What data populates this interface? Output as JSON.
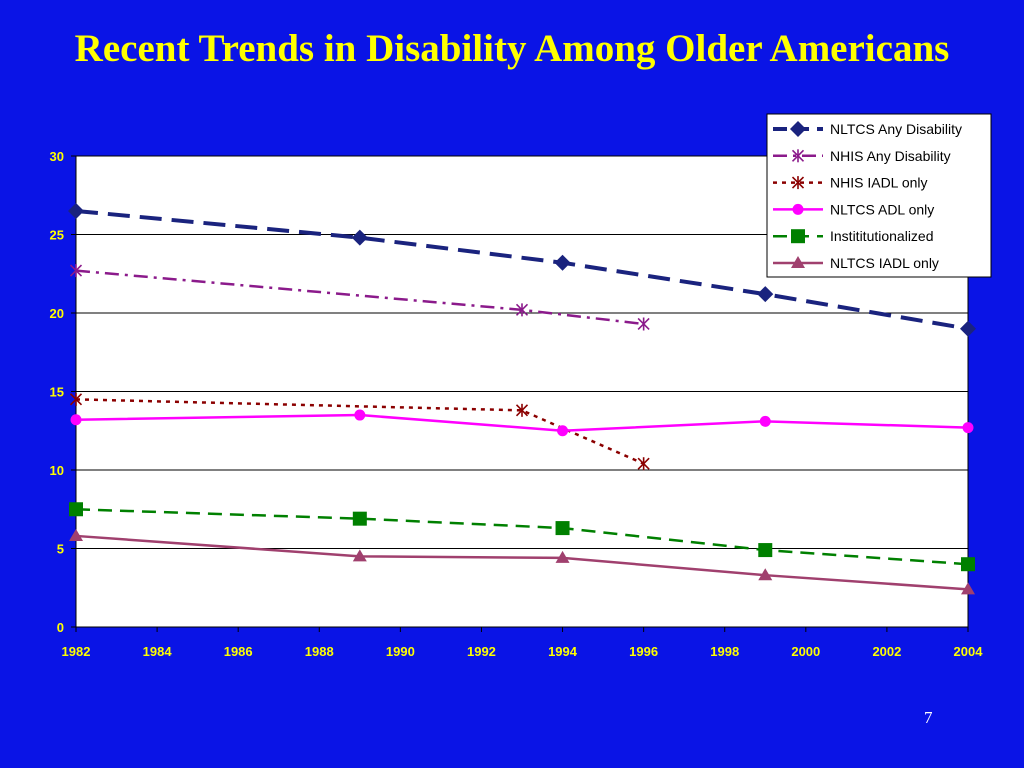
{
  "slide": {
    "title": "Recent Trends in Disability Among Older Americans",
    "page_number": "7",
    "background_color": "#0a14e6",
    "title_color": "#ffff00"
  },
  "chart_data": {
    "type": "line",
    "title": "",
    "xlabel": "",
    "ylabel": "",
    "xlim": [
      1982,
      2004
    ],
    "ylim": [
      0,
      30
    ],
    "x_ticks": [
      "1982",
      "1984",
      "1986",
      "1988",
      "1990",
      "1992",
      "1994",
      "1996",
      "1998",
      "2000",
      "2002",
      "2004"
    ],
    "y_ticks": [
      "0",
      "5",
      "10",
      "15",
      "20",
      "25",
      "30"
    ],
    "grid": "horizontal",
    "legend_position": "top-right",
    "series": [
      {
        "name": "NLTCS Any Disability",
        "color": "#1a237e",
        "line_style": "long-dash",
        "marker": "diamond",
        "x": [
          1982,
          1989,
          1994,
          1999,
          2004
        ],
        "y": [
          26.5,
          24.8,
          23.2,
          21.2,
          19.0
        ]
      },
      {
        "name": "NHIS Any Disability",
        "color": "#8b1a8b",
        "line_style": "dash-dot",
        "marker": "asterisk",
        "x": [
          1982,
          1993,
          1996
        ],
        "y": [
          22.7,
          20.2,
          19.3
        ]
      },
      {
        "name": "NHIS IADL only",
        "color": "#8b0000",
        "line_style": "dotted",
        "marker": "asterisk",
        "x": [
          1982,
          1993,
          1996
        ],
        "y": [
          14.5,
          13.8,
          10.4
        ]
      },
      {
        "name": "NLTCS ADL only",
        "color": "#ff00ff",
        "line_style": "solid",
        "marker": "circle",
        "x": [
          1982,
          1989,
          1994,
          1999,
          2004
        ],
        "y": [
          13.2,
          13.5,
          12.5,
          13.1,
          12.7
        ]
      },
      {
        "name": "Instititutionalized",
        "color": "#008000",
        "line_style": "dash",
        "marker": "square",
        "x": [
          1982,
          1989,
          1994,
          1999,
          2004
        ],
        "y": [
          7.5,
          6.9,
          6.3,
          4.9,
          4.0
        ]
      },
      {
        "name": "NLTCS IADL only",
        "color": "#a0406e",
        "line_style": "solid",
        "marker": "triangle",
        "x": [
          1982,
          1989,
          1994,
          1999,
          2004
        ],
        "y": [
          5.8,
          4.5,
          4.4,
          3.3,
          2.4
        ]
      }
    ]
  }
}
